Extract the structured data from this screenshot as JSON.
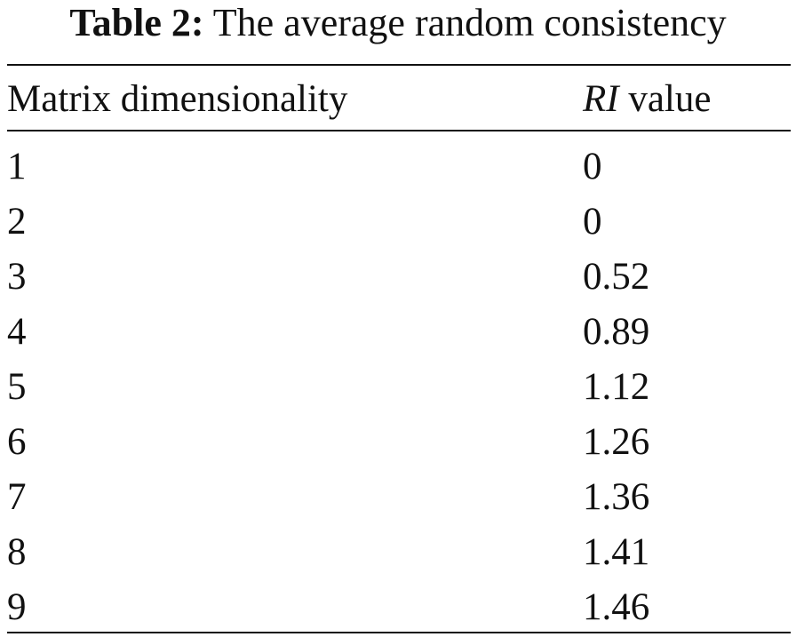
{
  "caption": {
    "label": "Table 2:",
    "text": "The average random consistency"
  },
  "table": {
    "headers": {
      "col1": "Matrix dimensionality",
      "col2_italic": "RI",
      "col2_rest": " value"
    },
    "rows": [
      {
        "dim": "1",
        "ri": "0"
      },
      {
        "dim": "2",
        "ri": "0"
      },
      {
        "dim": "3",
        "ri": "0.52"
      },
      {
        "dim": "4",
        "ri": "0.89"
      },
      {
        "dim": "5",
        "ri": "1.12"
      },
      {
        "dim": "6",
        "ri": "1.26"
      },
      {
        "dim": "7",
        "ri": "1.36"
      },
      {
        "dim": "8",
        "ri": "1.41"
      },
      {
        "dim": "9",
        "ri": "1.46"
      }
    ]
  }
}
